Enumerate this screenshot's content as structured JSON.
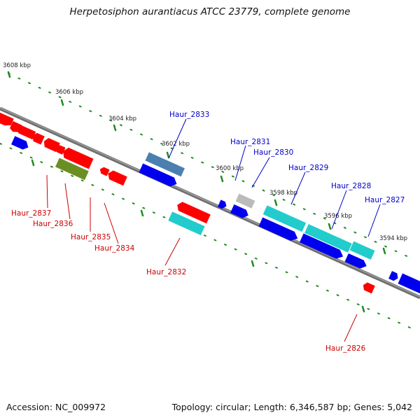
{
  "title": "Herpetosiphon aurantiacus ATCC 23779, complete genome",
  "footer": {
    "accession": "Accession: NC_009972",
    "summary": "Topology: circular; Length: 6,346,587 bp; Genes: 5,042"
  },
  "scale_ticks": [
    "3608 kbp",
    "3606 kbp",
    "3604 kbp",
    "3602 kbp",
    "3600 kbp",
    "3598 kbp",
    "3596 kbp",
    "3594 kbp"
  ],
  "genes": [
    {
      "name": "Haur_2837",
      "strand": "reverse"
    },
    {
      "name": "Haur_2836",
      "strand": "reverse"
    },
    {
      "name": "Haur_2835",
      "strand": "reverse"
    },
    {
      "name": "Haur_2834",
      "strand": "reverse"
    },
    {
      "name": "Haur_2833",
      "strand": "forward"
    },
    {
      "name": "Haur_2832",
      "strand": "reverse"
    },
    {
      "name": "Haur_2831",
      "strand": "forward"
    },
    {
      "name": "Haur_2830",
      "strand": "forward"
    },
    {
      "name": "Haur_2829",
      "strand": "forward"
    },
    {
      "name": "Haur_2828",
      "strand": "forward"
    },
    {
      "name": "Haur_2827",
      "strand": "forward"
    },
    {
      "name": "Haur_2826",
      "strand": "reverse"
    }
  ],
  "colors": {
    "forward_label": "#0000cc",
    "reverse_label": "#cc0000",
    "forward_cds": "#0000ee",
    "reverse_cds": "#ff0000",
    "cyan_feature": "#22cccc",
    "steel_feature": "#4a7fb0",
    "olive_feature": "#6b8e23",
    "gray_feature": "#bbbbbb",
    "backbone": "#808080",
    "tick_marks": "#228b22"
  }
}
